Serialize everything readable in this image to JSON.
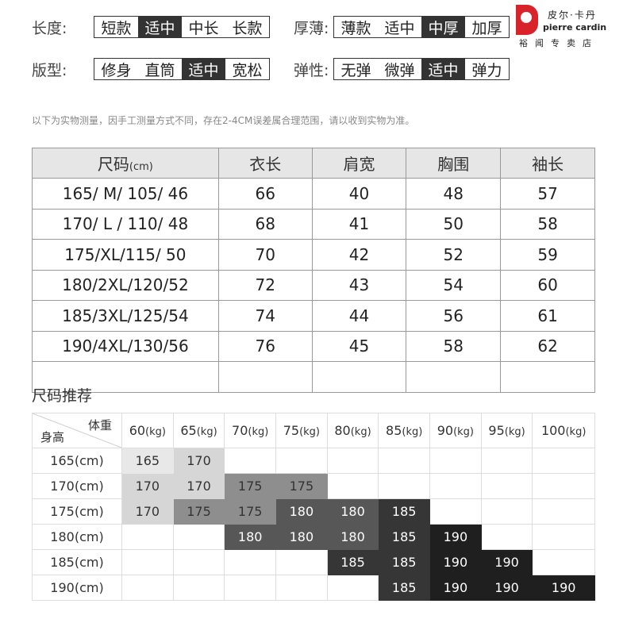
{
  "attributes": [
    {
      "label": "长度:",
      "options": [
        "短款",
        "适中",
        "中长",
        "长款"
      ],
      "selected": 1
    },
    {
      "label": "厚薄:",
      "options": [
        "薄款",
        "适中",
        "中厚",
        "加厚"
      ],
      "selected": 2
    },
    {
      "label": "版型:",
      "options": [
        "修身",
        "直筒",
        "适中",
        "宽松"
      ],
      "selected": 2
    },
    {
      "label": "弹性:",
      "options": [
        "无弹",
        "微弹",
        "适中",
        "弹力"
      ],
      "selected": 2
    }
  ],
  "logo": {
    "cn": "皮尔·卡丹",
    "en": "pierre cardin",
    "store": "裕闻专卖店",
    "color": "#d8232a"
  },
  "note": "以下为实物测量，因手工测量方式不同，存在2-4CM误差属合理范围，请以收到实物为准。",
  "size_table": {
    "headers": [
      "尺码",
      "衣长",
      "肩宽",
      "胸围",
      "袖长"
    ],
    "header_unit": "(cm)",
    "rows": [
      [
        "165/ M/ 105/ 46",
        "66",
        "40",
        "48",
        "57"
      ],
      [
        "170/ L / 110/  48",
        "68",
        "41",
        "50",
        "58"
      ],
      [
        "175/XL/115/  50",
        "70",
        "42",
        "52",
        "59"
      ],
      [
        "180/2XL/120/52",
        "72",
        "43",
        "54",
        "60"
      ],
      [
        "185/3XL/125/54",
        "74",
        "44",
        "56",
        "61"
      ],
      [
        "190/4XL/130/56",
        "76",
        "45",
        "58",
        "62"
      ],
      [
        "",
        "",
        "",
        "",
        ""
      ]
    ]
  },
  "recommend": {
    "title": "尺码推荐",
    "corner_weight": "体重",
    "corner_height": "身高",
    "weights": [
      "60",
      "65",
      "70",
      "75",
      "80",
      "85",
      "90",
      "95",
      "100"
    ],
    "weight_unit": "(kg)",
    "heights": [
      "165(cm)",
      "170(cm)",
      "175(cm)",
      "180(cm)",
      "185(cm)",
      "190(cm)"
    ],
    "cells": [
      [
        "165",
        "170",
        "",
        "",
        "",
        "",
        "",
        "",
        ""
      ],
      [
        "170",
        "170",
        "175",
        "175",
        "",
        "",
        "",
        "",
        ""
      ],
      [
        "170",
        "175",
        "175",
        "180",
        "180",
        "185",
        "",
        "",
        ""
      ],
      [
        "",
        "",
        "180",
        "180",
        "180",
        "185",
        "190",
        "",
        ""
      ],
      [
        "",
        "",
        "",
        "",
        "185",
        "185",
        "190",
        "190",
        ""
      ],
      [
        "",
        "",
        "",
        "",
        "",
        "185",
        "190",
        "190",
        "190"
      ]
    ],
    "colors": {
      "165": "#e8e8e8",
      "170": "#d6d6d6",
      "175": "#8e8e8e",
      "180": "#575757",
      "185": "#363636",
      "190": "#1f1f1f"
    }
  }
}
